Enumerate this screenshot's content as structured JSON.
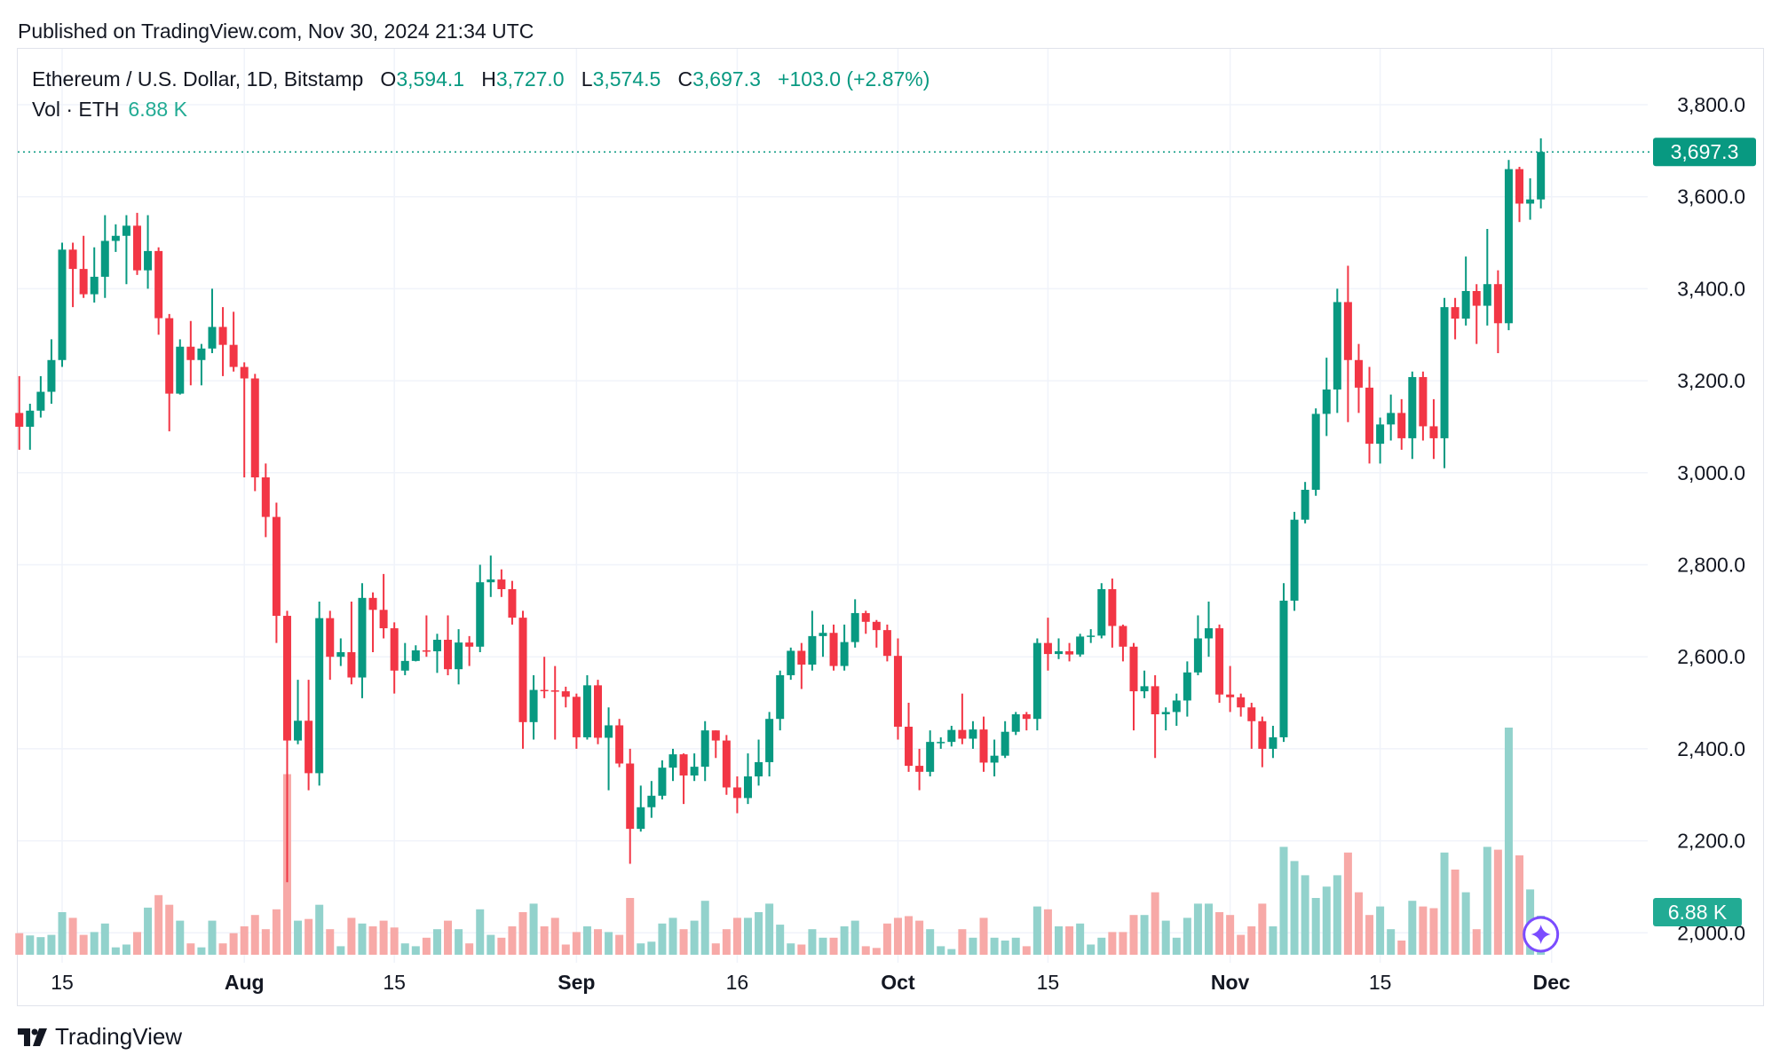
{
  "header": {
    "published": "Published on TradingView.com, Nov 30, 2024 21:34 UTC"
  },
  "legend": {
    "symbol": "Ethereum / U.S. Dollar, 1D, Bitstamp",
    "o_label": "O",
    "o": "3,594.1",
    "h_label": "H",
    "h": "3,727.0",
    "l_label": "L",
    "l": "3,574.5",
    "c_label": "C",
    "c": "3,697.3",
    "change": "+103.0 (+2.87%)",
    "vol_label": "Vol · ETH",
    "vol": "6.88 K"
  },
  "footer": {
    "brand": "TradingView",
    "logo_icon": "tradingview-logo-icon"
  },
  "colors": {
    "up": "#089981",
    "down": "#f23645",
    "vol_up": "#92d2cc",
    "vol_down": "#f7a9a7",
    "grid": "#f0f3fa",
    "marker": "#7b4cff"
  },
  "chart_data": {
    "type": "candlestick",
    "title": "",
    "ylim": [
      2000,
      3800
    ],
    "y_ticks": [
      "3,800.0",
      "3,600.0",
      "3,400.0",
      "3,200.0",
      "3,000.0",
      "2,800.0",
      "2,600.0",
      "2,400.0",
      "2,200.0",
      "2,000.0"
    ],
    "y_tick_values": [
      3800,
      3600,
      3400,
      3200,
      3000,
      2800,
      2600,
      2400,
      2200,
      2000
    ],
    "x_ticks": [
      {
        "label": "15",
        "date": "2024-07-15"
      },
      {
        "label": "Aug",
        "date": "2024-08-01"
      },
      {
        "label": "15",
        "date": "2024-08-15"
      },
      {
        "label": "Sep",
        "date": "2024-09-01"
      },
      {
        "label": "16",
        "date": "2024-09-16"
      },
      {
        "label": "Oct",
        "date": "2024-10-01"
      },
      {
        "label": "15",
        "date": "2024-10-15"
      },
      {
        "label": "Nov",
        "date": "2024-11-01"
      },
      {
        "label": "15",
        "date": "2024-11-15"
      },
      {
        "label": "Dec",
        "date": "2024-12-01"
      }
    ],
    "last_price_label": "3,697.3",
    "last_price": 3697.3,
    "last_volume_label": "6.88 K",
    "grid": true,
    "volume_unit": "K ETH",
    "columns": [
      "date",
      "open",
      "high",
      "low",
      "close",
      "volume"
    ],
    "candles": [
      [
        "2024-07-11",
        3130,
        3210,
        3050,
        3100,
        3.8
      ],
      [
        "2024-07-12",
        3100,
        3150,
        3050,
        3135,
        3.4
      ],
      [
        "2024-07-13",
        3135,
        3210,
        3120,
        3176,
        3.1
      ],
      [
        "2024-07-14",
        3176,
        3290,
        3150,
        3245,
        3.5
      ],
      [
        "2024-07-15",
        3245,
        3500,
        3230,
        3485,
        7.5
      ],
      [
        "2024-07-16",
        3485,
        3500,
        3360,
        3443,
        6.5
      ],
      [
        "2024-07-17",
        3443,
        3515,
        3380,
        3388,
        3.5
      ],
      [
        "2024-07-18",
        3388,
        3490,
        3370,
        3426,
        4.0
      ],
      [
        "2024-07-19",
        3426,
        3560,
        3380,
        3504,
        5.5
      ],
      [
        "2024-07-20",
        3504,
        3540,
        3480,
        3515,
        1.3
      ],
      [
        "2024-07-21",
        3515,
        3560,
        3410,
        3537,
        1.8
      ],
      [
        "2024-07-22",
        3537,
        3565,
        3430,
        3440,
        4.0
      ],
      [
        "2024-07-23",
        3440,
        3560,
        3400,
        3482,
        8.3
      ],
      [
        "2024-07-24",
        3482,
        3490,
        3300,
        3336,
        10.5
      ],
      [
        "2024-07-25",
        3336,
        3345,
        3090,
        3172,
        8.8
      ],
      [
        "2024-07-26",
        3172,
        3290,
        3170,
        3274,
        6.0
      ],
      [
        "2024-07-27",
        3274,
        3330,
        3190,
        3245,
        2.0
      ],
      [
        "2024-07-28",
        3245,
        3280,
        3190,
        3270,
        1.3
      ],
      [
        "2024-07-29",
        3270,
        3400,
        3260,
        3317,
        6.0
      ],
      [
        "2024-07-30",
        3317,
        3360,
        3210,
        3278,
        2.0
      ],
      [
        "2024-07-31",
        3278,
        3350,
        3220,
        3230,
        3.8
      ],
      [
        "2024-08-01",
        3230,
        3240,
        2990,
        3205,
        5.0
      ],
      [
        "2024-08-02",
        3205,
        3215,
        2960,
        2990,
        7.0
      ],
      [
        "2024-08-03",
        2990,
        3020,
        2860,
        2904,
        4.5
      ],
      [
        "2024-08-04",
        2904,
        2935,
        2630,
        2689,
        8.0
      ],
      [
        "2024-08-05",
        2689,
        2700,
        2110,
        2418,
        31.8
      ],
      [
        "2024-08-06",
        2418,
        2550,
        2410,
        2461,
        6.0
      ],
      [
        "2024-08-07",
        2461,
        2550,
        2310,
        2347,
        6.3
      ],
      [
        "2024-08-08",
        2347,
        2720,
        2320,
        2684,
        8.8
      ],
      [
        "2024-08-09",
        2684,
        2700,
        2550,
        2600,
        4.5
      ],
      [
        "2024-08-10",
        2600,
        2640,
        2580,
        2610,
        1.5
      ],
      [
        "2024-08-11",
        2610,
        2720,
        2540,
        2555,
        6.5
      ],
      [
        "2024-08-12",
        2555,
        2760,
        2510,
        2728,
        5.5
      ],
      [
        "2024-08-13",
        2728,
        2740,
        2610,
        2702,
        5.0
      ],
      [
        "2024-08-14",
        2702,
        2780,
        2640,
        2662,
        6.0
      ],
      [
        "2024-08-15",
        2662,
        2675,
        2520,
        2570,
        4.8
      ],
      [
        "2024-08-16",
        2570,
        2630,
        2560,
        2591,
        2.0
      ],
      [
        "2024-08-17",
        2591,
        2625,
        2590,
        2614,
        1.5
      ],
      [
        "2024-08-18",
        2614,
        2690,
        2600,
        2612,
        3.0
      ],
      [
        "2024-08-19",
        2612,
        2650,
        2565,
        2637,
        4.5
      ],
      [
        "2024-08-20",
        2637,
        2690,
        2560,
        2573,
        6.0
      ],
      [
        "2024-08-21",
        2573,
        2660,
        2540,
        2631,
        4.5
      ],
      [
        "2024-08-22",
        2631,
        2645,
        2580,
        2622,
        2.0
      ],
      [
        "2024-08-23",
        2622,
        2800,
        2610,
        2762,
        8.0
      ],
      [
        "2024-08-24",
        2762,
        2820,
        2730,
        2768,
        3.5
      ],
      [
        "2024-08-25",
        2768,
        2790,
        2730,
        2747,
        3.0
      ],
      [
        "2024-08-26",
        2747,
        2765,
        2670,
        2685,
        5.0
      ],
      [
        "2024-08-27",
        2685,
        2700,
        2400,
        2458,
        7.5
      ],
      [
        "2024-08-28",
        2458,
        2560,
        2420,
        2528,
        9.0
      ],
      [
        "2024-08-29",
        2528,
        2600,
        2510,
        2527,
        5.0
      ],
      [
        "2024-08-30",
        2527,
        2580,
        2420,
        2525,
        6.5
      ],
      [
        "2024-08-31",
        2525,
        2535,
        2490,
        2513,
        1.8
      ],
      [
        "2024-09-01",
        2513,
        2520,
        2400,
        2425,
        4.0
      ],
      [
        "2024-09-02",
        2425,
        2560,
        2420,
        2538,
        5.0
      ],
      [
        "2024-09-03",
        2538,
        2550,
        2410,
        2424,
        4.5
      ],
      [
        "2024-09-04",
        2424,
        2490,
        2310,
        2451,
        4.0
      ],
      [
        "2024-09-05",
        2451,
        2465,
        2360,
        2368,
        3.5
      ],
      [
        "2024-09-06",
        2368,
        2400,
        2150,
        2226,
        10.0
      ],
      [
        "2024-09-07",
        2226,
        2320,
        2220,
        2273,
        2.0
      ],
      [
        "2024-09-08",
        2273,
        2330,
        2250,
        2298,
        2.3
      ],
      [
        "2024-09-09",
        2298,
        2375,
        2290,
        2359,
        5.5
      ],
      [
        "2024-09-10",
        2359,
        2400,
        2330,
        2388,
        6.5
      ],
      [
        "2024-09-11",
        2388,
        2390,
        2280,
        2342,
        4.5
      ],
      [
        "2024-09-12",
        2342,
        2390,
        2330,
        2361,
        6.0
      ],
      [
        "2024-09-13",
        2361,
        2460,
        2330,
        2440,
        9.5
      ],
      [
        "2024-09-14",
        2440,
        2440,
        2380,
        2418,
        2.0
      ],
      [
        "2024-09-15",
        2418,
        2430,
        2300,
        2316,
        4.5
      ],
      [
        "2024-09-16",
        2316,
        2340,
        2260,
        2293,
        6.5
      ],
      [
        "2024-09-17",
        2293,
        2390,
        2280,
        2340,
        6.5
      ],
      [
        "2024-09-18",
        2340,
        2420,
        2320,
        2371,
        7.5
      ],
      [
        "2024-09-19",
        2371,
        2480,
        2340,
        2465,
        9.0
      ],
      [
        "2024-09-20",
        2465,
        2570,
        2440,
        2560,
        5.3
      ],
      [
        "2024-09-21",
        2560,
        2620,
        2550,
        2613,
        2.0
      ],
      [
        "2024-09-22",
        2613,
        2630,
        2530,
        2583,
        1.8
      ],
      [
        "2024-09-23",
        2583,
        2700,
        2570,
        2645,
        4.5
      ],
      [
        "2024-09-24",
        2645,
        2670,
        2600,
        2652,
        3.0
      ],
      [
        "2024-09-25",
        2652,
        2670,
        2570,
        2580,
        3.0
      ],
      [
        "2024-09-26",
        2580,
        2670,
        2570,
        2632,
        5.0
      ],
      [
        "2024-09-27",
        2632,
        2725,
        2620,
        2695,
        6.0
      ],
      [
        "2024-09-28",
        2695,
        2700,
        2650,
        2676,
        1.5
      ],
      [
        "2024-09-29",
        2676,
        2680,
        2620,
        2658,
        1.2
      ],
      [
        "2024-09-30",
        2658,
        2670,
        2590,
        2602,
        5.5
      ],
      [
        "2024-10-01",
        2602,
        2640,
        2420,
        2448,
        6.5
      ],
      [
        "2024-10-02",
        2448,
        2500,
        2350,
        2363,
        6.8
      ],
      [
        "2024-10-03",
        2363,
        2400,
        2310,
        2350,
        6.0
      ],
      [
        "2024-10-04",
        2350,
        2440,
        2340,
        2415,
        4.5
      ],
      [
        "2024-10-05",
        2415,
        2425,
        2400,
        2415,
        1.5
      ],
      [
        "2024-10-06",
        2415,
        2450,
        2405,
        2441,
        1.0
      ],
      [
        "2024-10-07",
        2441,
        2520,
        2410,
        2422,
        4.5
      ],
      [
        "2024-10-08",
        2422,
        2460,
        2400,
        2442,
        3.0
      ],
      [
        "2024-10-09",
        2442,
        2470,
        2350,
        2370,
        6.5
      ],
      [
        "2024-10-10",
        2370,
        2420,
        2340,
        2385,
        3.0
      ],
      [
        "2024-10-11",
        2385,
        2460,
        2380,
        2437,
        2.5
      ],
      [
        "2024-10-12",
        2437,
        2480,
        2430,
        2475,
        3.0
      ],
      [
        "2024-10-13",
        2475,
        2480,
        2440,
        2465,
        1.5
      ],
      [
        "2024-10-14",
        2465,
        2640,
        2440,
        2630,
        8.5
      ],
      [
        "2024-10-15",
        2630,
        2685,
        2570,
        2606,
        8.0
      ],
      [
        "2024-10-16",
        2606,
        2640,
        2595,
        2612,
        5.0
      ],
      [
        "2024-10-17",
        2612,
        2630,
        2590,
        2605,
        5.0
      ],
      [
        "2024-10-18",
        2605,
        2650,
        2600,
        2644,
        5.5
      ],
      [
        "2024-10-19",
        2644,
        2660,
        2630,
        2646,
        1.8
      ],
      [
        "2024-10-20",
        2646,
        2760,
        2640,
        2747,
        3.0
      ],
      [
        "2024-10-21",
        2747,
        2770,
        2620,
        2667,
        4.0
      ],
      [
        "2024-10-22",
        2667,
        2670,
        2590,
        2622,
        4.0
      ],
      [
        "2024-10-23",
        2622,
        2630,
        2440,
        2525,
        7.0
      ],
      [
        "2024-10-24",
        2525,
        2570,
        2510,
        2536,
        7.0
      ],
      [
        "2024-10-25",
        2536,
        2560,
        2380,
        2475,
        11.0
      ],
      [
        "2024-10-26",
        2475,
        2490,
        2440,
        2480,
        6.0
      ],
      [
        "2024-10-27",
        2480,
        2520,
        2450,
        2505,
        3.0
      ],
      [
        "2024-10-28",
        2505,
        2590,
        2470,
        2566,
        6.5
      ],
      [
        "2024-10-29",
        2566,
        2690,
        2560,
        2640,
        9.0
      ],
      [
        "2024-10-30",
        2640,
        2720,
        2600,
        2662,
        9.0
      ],
      [
        "2024-10-31",
        2662,
        2670,
        2500,
        2518,
        7.5
      ],
      [
        "2024-11-01",
        2518,
        2580,
        2480,
        2512,
        7.0
      ],
      [
        "2024-11-02",
        2512,
        2520,
        2470,
        2490,
        3.5
      ],
      [
        "2024-11-03",
        2490,
        2500,
        2400,
        2460,
        5.0
      ],
      [
        "2024-11-04",
        2460,
        2470,
        2360,
        2400,
        9.0
      ],
      [
        "2024-11-05",
        2400,
        2450,
        2380,
        2425,
        5.0
      ],
      [
        "2024-11-06",
        2425,
        2760,
        2415,
        2722,
        19.0
      ],
      [
        "2024-11-07",
        2722,
        2915,
        2700,
        2898,
        16.5
      ],
      [
        "2024-11-08",
        2898,
        2980,
        2890,
        2963,
        14.0
      ],
      [
        "2024-11-09",
        2963,
        3140,
        2950,
        3128,
        10.0
      ],
      [
        "2024-11-10",
        3128,
        3250,
        3080,
        3181,
        12.0
      ],
      [
        "2024-11-11",
        3181,
        3400,
        3130,
        3371,
        14.0
      ],
      [
        "2024-11-12",
        3371,
        3450,
        3110,
        3245,
        18.0
      ],
      [
        "2024-11-13",
        3245,
        3280,
        3130,
        3185,
        11.0
      ],
      [
        "2024-11-14",
        3185,
        3230,
        3020,
        3063,
        7.0
      ],
      [
        "2024-11-15",
        3063,
        3120,
        3020,
        3105,
        8.5
      ],
      [
        "2024-11-16",
        3105,
        3170,
        3070,
        3130,
        4.5
      ],
      [
        "2024-11-17",
        3130,
        3160,
        3050,
        3075,
        2.5
      ],
      [
        "2024-11-18",
        3075,
        3220,
        3030,
        3208,
        9.5
      ],
      [
        "2024-11-19",
        3208,
        3220,
        3070,
        3101,
        8.5
      ],
      [
        "2024-11-20",
        3101,
        3160,
        3030,
        3075,
        8.2
      ],
      [
        "2024-11-21",
        3075,
        3380,
        3010,
        3360,
        18.0
      ],
      [
        "2024-11-22",
        3360,
        3380,
        3290,
        3335,
        15.0
      ],
      [
        "2024-11-23",
        3335,
        3470,
        3320,
        3395,
        11.0
      ],
      [
        "2024-11-24",
        3395,
        3410,
        3280,
        3363,
        4.5
      ],
      [
        "2024-11-25",
        3363,
        3530,
        3320,
        3410,
        19.0
      ],
      [
        "2024-11-26",
        3410,
        3440,
        3260,
        3325,
        18.5
      ],
      [
        "2024-11-27",
        3325,
        3680,
        3310,
        3660,
        40.0
      ],
      [
        "2024-11-28",
        3660,
        3665,
        3545,
        3585,
        17.5
      ],
      [
        "2024-11-29",
        3585,
        3640,
        3550,
        3594.1,
        11.5
      ],
      [
        "2024-11-30",
        3594.1,
        3727.0,
        3574.5,
        3697.3,
        6.88
      ]
    ]
  }
}
